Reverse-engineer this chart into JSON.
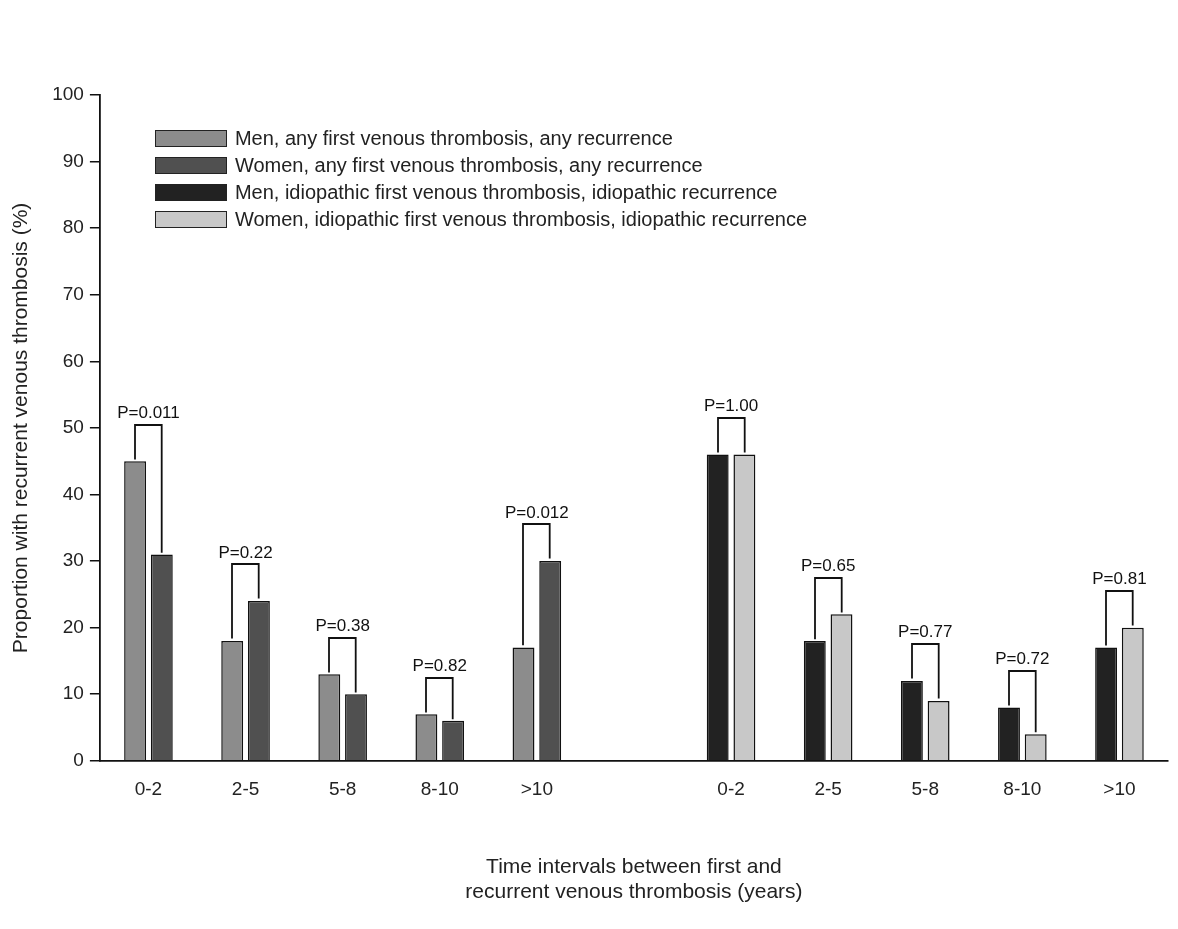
{
  "chart_data": {
    "type": "bar",
    "categories": [
      "0-2",
      "2-5",
      "5-8",
      "8-10",
      ">10",
      null,
      "0-2",
      "2-5",
      "5-8",
      "8-10",
      ">10"
    ],
    "series": [
      {
        "name": "Men, any first venous thrombosis, any recurrence",
        "color": "#8c8c8c",
        "values": [
          45,
          18,
          13,
          7,
          17,
          null,
          null,
          null,
          null,
          null,
          null
        ]
      },
      {
        "name": "Women, any first venous thrombosis, any recurrence",
        "color": "#505050",
        "values": [
          31,
          24,
          10,
          6,
          30,
          null,
          null,
          null,
          null,
          null,
          null
        ]
      },
      {
        "name": "Men, idiopathic first venous thrombosis, idiopathic recurrence",
        "color": "#222222",
        "values": [
          null,
          null,
          null,
          null,
          null,
          null,
          46,
          18,
          12,
          8,
          17
        ]
      },
      {
        "name": "Women, idiopathic first venous thrombosis, idiopathic recurrence",
        "color": "#c8c8c8",
        "values": [
          null,
          null,
          null,
          null,
          null,
          null,
          46,
          22,
          9,
          4,
          20
        ]
      }
    ],
    "xlabel": "Time intervals between first and recurrent venous thrombosis (years)",
    "ylabel": "Proportion with recurrent venous thrombosis (%)",
    "ylim": [
      0,
      100
    ],
    "yticks": [
      0,
      10,
      20,
      30,
      40,
      50,
      60,
      70,
      80,
      90,
      100
    ],
    "annotations": [
      "P=0.011",
      "P=0.22",
      "P=0.38",
      "P=0.82",
      "P=0.012",
      "P=1.00",
      "P=0.65",
      "P=0.77",
      "P=0.72",
      "P=0.81"
    ],
    "grid": false,
    "legend": "top left"
  }
}
